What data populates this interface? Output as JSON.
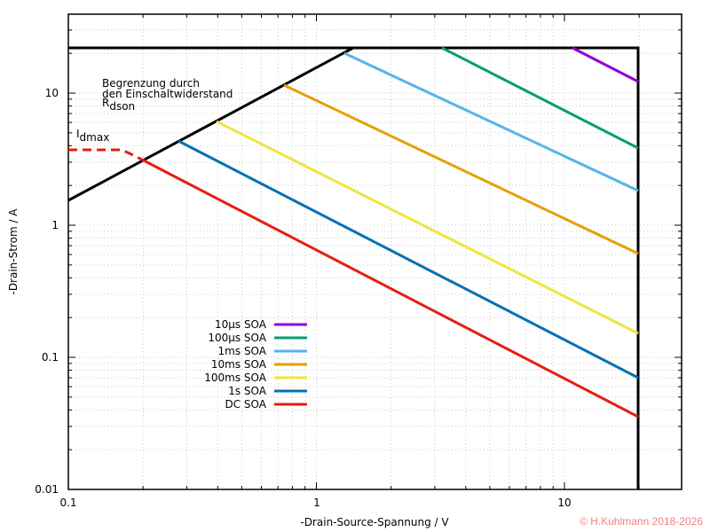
{
  "chart_data": {
    "type": "line",
    "title": "",
    "xlabel": "-Drain-Source-Spannung / V",
    "ylabel": "-Drain-Strom / A",
    "xscale": "log",
    "yscale": "log",
    "xlim": [
      0.1,
      25
    ],
    "ylim": [
      0.01,
      47
    ],
    "grid": true,
    "x_ticks": [
      "0.1",
      "1",
      "10"
    ],
    "y_ticks": [
      "0.01",
      "0.1",
      "1",
      "10"
    ],
    "legend_position": "inside-lower-left",
    "annotations": [
      {
        "text": "Begrenzung durch",
        "x": 0.135,
        "y": 12
      },
      {
        "text": "den Einschaltwiderstand",
        "x": 0.135,
        "y": 10.2
      },
      {
        "text": "R",
        "sub": "dson",
        "x": 0.135,
        "y": 8.4
      },
      {
        "text": "I",
        "sub": "dmax",
        "x": 0.103,
        "y": 4.6
      }
    ],
    "boundaries": [
      {
        "name": "Idmax line",
        "x": [
          0.1,
          20
        ],
        "y": [
          22,
          22
        ],
        "color": "#000000"
      },
      {
        "name": "Vdsmax line",
        "x": [
          20,
          20
        ],
        "y": [
          0.01,
          22
        ],
        "color": "#000000"
      },
      {
        "name": "Rdson limit",
        "x": [
          0.1,
          1.4
        ],
        "y": [
          1.5,
          22
        ],
        "color": "#000000"
      }
    ],
    "series": [
      {
        "name": "10µs SOA",
        "color": "#9400d3",
        "x": [
          10.7,
          20
        ],
        "y": [
          22,
          12
        ]
      },
      {
        "name": "100µs SOA",
        "color": "#009e73",
        "x": [
          3.2,
          20
        ],
        "y": [
          22,
          3.8
        ]
      },
      {
        "name": "1ms SOA",
        "color": "#56b4e9",
        "x": [
          1.3,
          20
        ],
        "y": [
          20,
          1.8
        ]
      },
      {
        "name": "10ms SOA",
        "color": "#e69f00",
        "x": [
          0.74,
          20
        ],
        "y": [
          11.5,
          0.6
        ]
      },
      {
        "name": "100ms SOA",
        "color": "#f0e442",
        "x": [
          0.4,
          20
        ],
        "y": [
          6.1,
          0.15
        ]
      },
      {
        "name": "1s SOA",
        "color": "#0072b2",
        "x": [
          0.28,
          20
        ],
        "y": [
          4.3,
          0.07
        ]
      },
      {
        "name": "DC SOA",
        "color": "#e51e10",
        "x": [
          0.1,
          0.165,
          0.2,
          20
        ],
        "y": [
          3.7,
          3.7,
          3.0,
          0.035
        ],
        "dashed_segment": [
          0.1,
          0.17
        ]
      }
    ]
  },
  "labels": {
    "xlabel": "-Drain-Source-Spannung / V",
    "ylabel": "-Drain-Strom / A",
    "ann1": "Begrenzung durch",
    "ann2": "den Einschaltwiderstand",
    "ann3": "R",
    "ann3sub": "dson",
    "ann4": "I",
    "ann4sub": "dmax",
    "copyright": "© H.Kuhlmann 2018-2026"
  },
  "ticks": {
    "x": [
      "0.1",
      "1",
      "10"
    ],
    "y": [
      "0.01",
      "0.1",
      "1",
      "10"
    ]
  },
  "legend": [
    {
      "label": "10µs SOA",
      "color": "#9400d3"
    },
    {
      "label": "100µs SOA",
      "color": "#009e73"
    },
    {
      "label": "1ms SOA",
      "color": "#56b4e9"
    },
    {
      "label": "10ms SOA",
      "color": "#e69f00"
    },
    {
      "label": "100ms SOA",
      "color": "#f0e442"
    },
    {
      "label": "1s SOA",
      "color": "#0072b2"
    },
    {
      "label": "DC SOA",
      "color": "#e51e10"
    }
  ]
}
